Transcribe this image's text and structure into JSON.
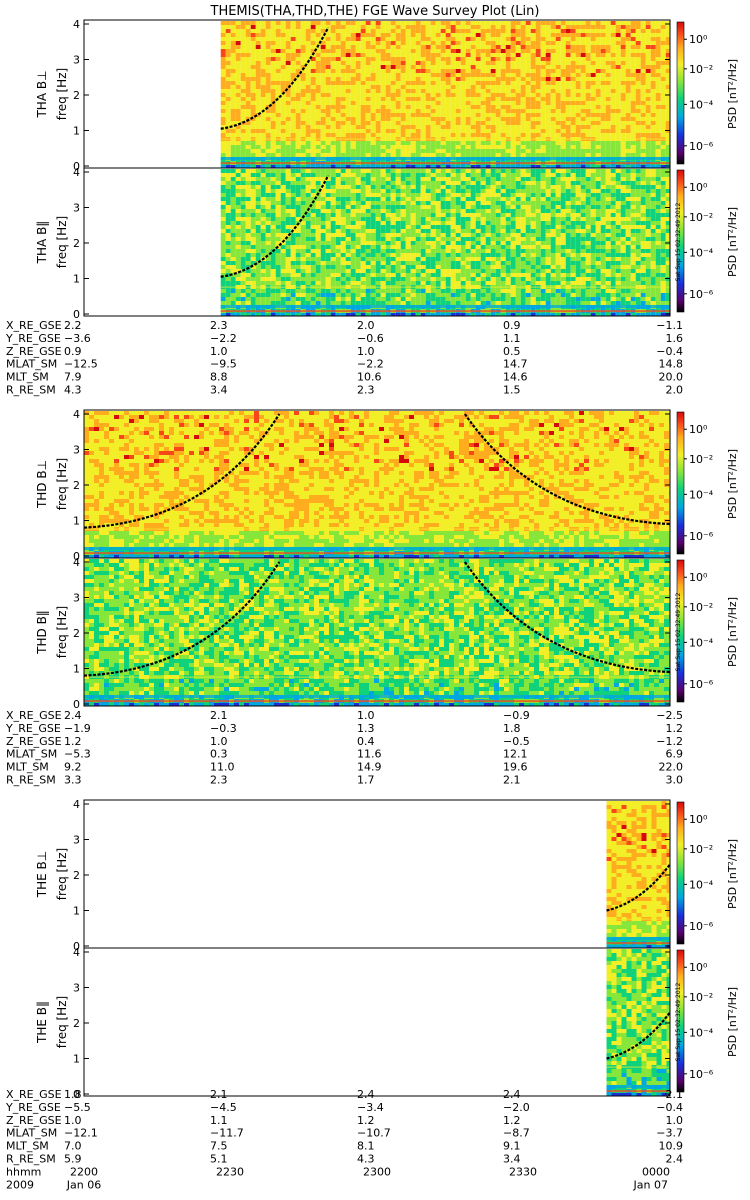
{
  "title": "THEMIS(THA,THD,THE) FGE Wave Survey Plot (Lin)",
  "colorbar_label": "PSD [nT²/Hz]",
  "colorbar_ticks": [
    "10⁰",
    "10⁻²",
    "10⁻⁴",
    "10⁻⁶"
  ],
  "timestamp": "Sat Sep 15 02:32:49 2012",
  "ephem_labels": [
    "X_RE_GSE",
    "Y_RE_GSE",
    "Z_RE_GSE",
    "MLAT_SM",
    "MLT_SM",
    "R_RE_SM"
  ],
  "time_axis": {
    "row_label": "hhmm",
    "ticks": [
      "2200",
      "2230",
      "2300",
      "2330",
      "0000"
    ],
    "year": "2009",
    "start_date": "Jan 06",
    "end_date": "Jan 07"
  },
  "chart_data": {
    "type": "heatmap",
    "x_unit": "UT hhmm",
    "x_range": [
      "2200",
      "0000"
    ],
    "ylim": [
      0,
      4
    ],
    "y_ticks": [
      0,
      1,
      2,
      3,
      4
    ],
    "color_scale": "log",
    "colorbar_range": [
      1e-06,
      10.0
    ],
    "probes": [
      {
        "name": "THA",
        "data_start": "2228",
        "panels": [
          {
            "ylabel": "THA B⊥",
            "yunit": "freq [Hz]"
          },
          {
            "ylabel": "THA B‖",
            "yunit": "freq [Hz]"
          }
        ],
        "gyro_curve": [
          [
            "2228",
            1.05
          ],
          [
            "2250",
            3.9
          ]
        ],
        "ephemeris": [
          [
            "2.2",
            "2.3",
            "2.0",
            "0.9",
            "−1.1"
          ],
          [
            "−3.6",
            "−2.2",
            "−0.6",
            "1.1",
            "1.6"
          ],
          [
            "0.9",
            "1.0",
            "1.0",
            "0.5",
            "−0.4"
          ],
          [
            "−12.5",
            "−9.5",
            "−2.2",
            "14.7",
            "14.8"
          ],
          [
            "7.9",
            "8.8",
            "10.6",
            "14.6",
            "20.0"
          ],
          [
            "4.3",
            "3.4",
            "2.3",
            "1.5",
            "2.0"
          ]
        ]
      },
      {
        "name": "THD",
        "data_start": "2200",
        "panels": [
          {
            "ylabel": "THD B⊥",
            "yunit": "freq [Hz]"
          },
          {
            "ylabel": "THD B‖",
            "yunit": "freq [Hz]"
          }
        ],
        "gyro_curve": [
          [
            "2200",
            0.8
          ],
          [
            "2240",
            4.0
          ],
          [
            "2318",
            4.0
          ],
          [
            "0000",
            0.9
          ]
        ],
        "ephemeris": [
          [
            "2.4",
            "2.1",
            "1.0",
            "−0.9",
            "−2.5"
          ],
          [
            "−1.9",
            "−0.3",
            "1.3",
            "1.8",
            "1.2"
          ],
          [
            "1.2",
            "1.0",
            "0.4",
            "−0.5",
            "−1.2"
          ],
          [
            "−5.3",
            "0.3",
            "11.6",
            "12.1",
            "6.9"
          ],
          [
            "9.2",
            "11.0",
            "14.9",
            "19.6",
            "22.0"
          ],
          [
            "3.3",
            "2.3",
            "1.7",
            "2.1",
            "3.0"
          ]
        ]
      },
      {
        "name": "THE",
        "data_start": "2347",
        "panels": [
          {
            "ylabel": "THE B⊥",
            "yunit": "freq [Hz]"
          },
          {
            "ylabel": "THE B‖",
            "yunit": "freq [Hz]"
          }
        ],
        "gyro_curve": [
          [
            "2347",
            1.0
          ],
          [
            "0000",
            2.3
          ]
        ],
        "ephemeris": [
          [
            "1.8",
            "2.1",
            "2.4",
            "2.4",
            "2.1"
          ],
          [
            "−5.5",
            "−4.5",
            "−3.4",
            "−2.0",
            "−0.4"
          ],
          [
            "1.0",
            "1.1",
            "1.2",
            "1.2",
            "1.0"
          ],
          [
            "−12.1",
            "−11.7",
            "−10.7",
            "−8.7",
            "−3.7"
          ],
          [
            "7.0",
            "7.5",
            "8.1",
            "9.1",
            "10.9"
          ],
          [
            "5.9",
            "5.1",
            "4.3",
            "3.4",
            "2.4"
          ]
        ]
      }
    ]
  }
}
